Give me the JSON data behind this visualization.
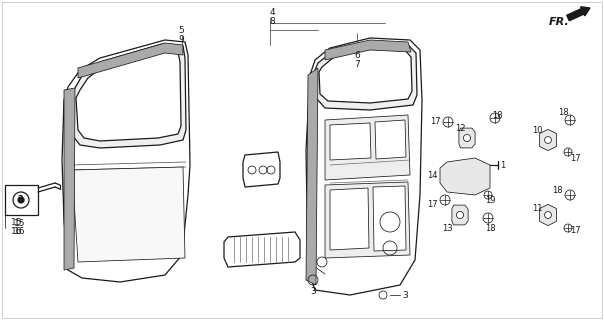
{
  "bg_color": "#ffffff",
  "line_color": "#1a1a1a",
  "fig_width": 6.04,
  "fig_height": 3.2,
  "dpi": 100,
  "hatch_color": "#888888",
  "gray_fill": "#d8d8d8"
}
